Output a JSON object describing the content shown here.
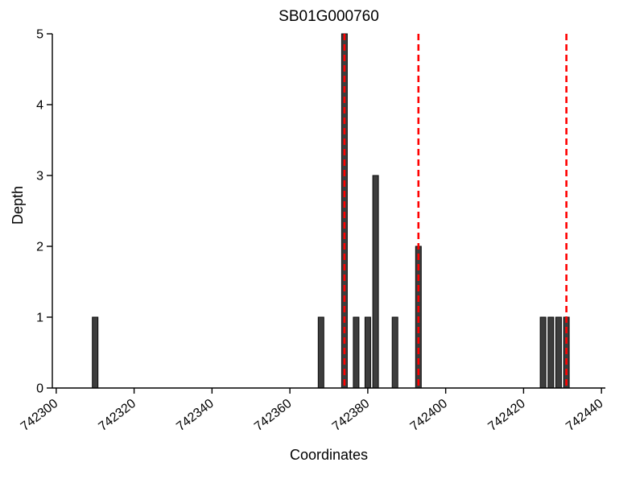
{
  "chart_data": {
    "type": "bar",
    "title": "SB01G000760",
    "xlabel": "Coordinates",
    "ylabel": "Depth",
    "xlim": [
      742299,
      742441
    ],
    "ylim": [
      0,
      5
    ],
    "x_ticks": [
      742300,
      742320,
      742340,
      742360,
      742380,
      742400,
      742420,
      742440
    ],
    "y_ticks": [
      0,
      1,
      2,
      3,
      4,
      5
    ],
    "bars": [
      {
        "x": 742310,
        "depth": 1
      },
      {
        "x": 742368,
        "depth": 1
      },
      {
        "x": 742374,
        "depth": 5
      },
      {
        "x": 742377,
        "depth": 1
      },
      {
        "x": 742380,
        "depth": 1
      },
      {
        "x": 742382,
        "depth": 3
      },
      {
        "x": 742387,
        "depth": 1
      },
      {
        "x": 742393,
        "depth": 2
      },
      {
        "x": 742425,
        "depth": 1
      },
      {
        "x": 742427,
        "depth": 1
      },
      {
        "x": 742429,
        "depth": 1
      },
      {
        "x": 742431,
        "depth": 1
      }
    ],
    "red_dashed_lines": [
      742374,
      742393,
      742431
    ],
    "bar_color": "#3d3d3d",
    "bar_edge_color": "#0a0a0a",
    "line_color": "#ff0000",
    "axis_color": "#000000",
    "grid": false,
    "legend": "none"
  }
}
